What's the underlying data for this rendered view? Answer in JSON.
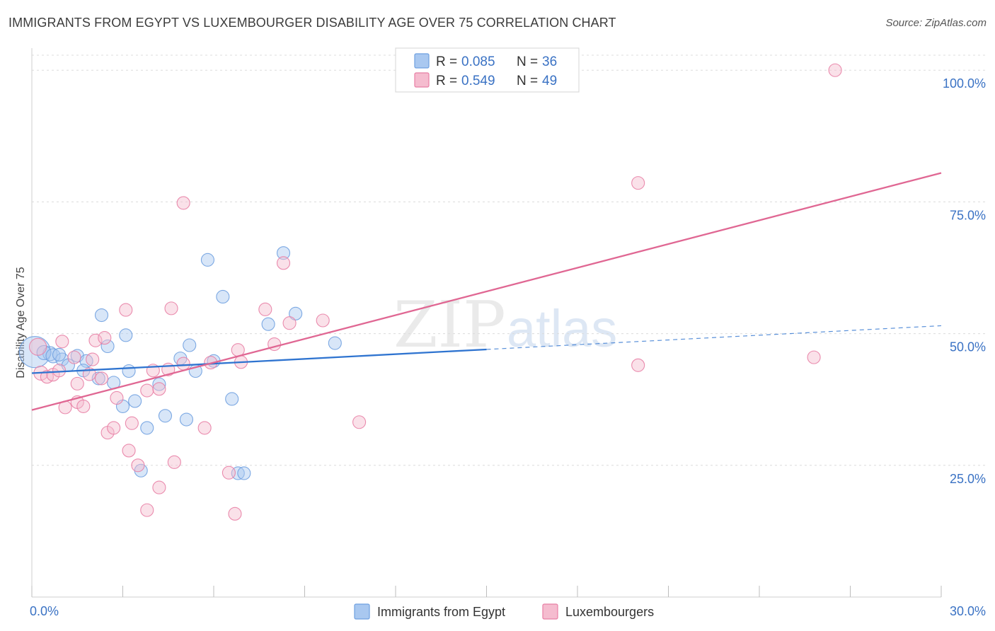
{
  "header": {
    "title": "IMMIGRANTS FROM EGYPT VS LUXEMBOURGER DISABILITY AGE OVER 75 CORRELATION CHART",
    "source": "Source: ZipAtlas.com"
  },
  "watermark": {
    "zip": "ZIP",
    "atlas": "atlas"
  },
  "chart_data": {
    "type": "scatter",
    "ylabel": "Disability Age Over 75",
    "xlim": [
      0,
      30
    ],
    "ylim": [
      0,
      105
    ],
    "x_tick_labels": [
      {
        "value": 0,
        "label": "0.0%"
      },
      {
        "value": 30,
        "label": "30.0%"
      }
    ],
    "y_tick_labels": [
      {
        "value": 25,
        "label": "25.0%"
      },
      {
        "value": 50,
        "label": "50.0%"
      },
      {
        "value": 75,
        "label": "75.0%"
      },
      {
        "value": 100,
        "label": "100.0%"
      }
    ],
    "grid": "horizontal dashed",
    "legend_position": "top-center",
    "stats": [
      {
        "r_label": "R = ",
        "r_value": "0.085",
        "n_label": "N = ",
        "n_value": "36"
      },
      {
        "r_label": "R = ",
        "r_value": "0.549",
        "n_label": "N = ",
        "n_value": "49"
      }
    ],
    "series": [
      {
        "name": "Immigrants from Egypt",
        "color": "#6fa0e0",
        "fill": "#a9c8f0",
        "trend": {
          "x0": 0,
          "y0": 42.5,
          "x1": 15,
          "y1": 47.0,
          "dashed_to_x": 30,
          "dashed_to_y": 51.5
        },
        "points": [
          [
            0.1,
            46.5,
            22
          ],
          [
            0.6,
            46.2,
            10
          ],
          [
            0.4,
            46.4,
            10
          ],
          [
            0.7,
            45.8,
            10
          ],
          [
            1.0,
            45.1,
            9
          ],
          [
            1.5,
            45.8,
            9
          ],
          [
            1.8,
            44.8,
            9
          ],
          [
            1.2,
            44.0,
            9
          ],
          [
            1.7,
            43.0,
            9
          ],
          [
            2.2,
            41.5,
            9
          ],
          [
            2.3,
            53.5,
            9
          ],
          [
            2.5,
            47.6,
            9
          ],
          [
            2.7,
            40.7,
            9
          ],
          [
            3.1,
            49.7,
            9
          ],
          [
            3.2,
            42.9,
            9
          ],
          [
            3.0,
            36.2,
            9
          ],
          [
            3.4,
            37.2,
            9
          ],
          [
            3.8,
            32.1,
            9
          ],
          [
            3.6,
            24.0,
            9
          ],
          [
            4.2,
            40.4,
            9
          ],
          [
            4.4,
            34.4,
            9
          ],
          [
            4.9,
            45.3,
            9
          ],
          [
            5.1,
            33.7,
            9
          ],
          [
            5.2,
            47.8,
            9
          ],
          [
            5.4,
            42.9,
            9
          ],
          [
            5.8,
            64.0,
            9
          ],
          [
            6.0,
            44.8,
            9
          ],
          [
            6.3,
            57.0,
            9
          ],
          [
            6.6,
            37.6,
            9
          ],
          [
            6.8,
            23.5,
            9
          ],
          [
            7.0,
            23.5,
            9
          ],
          [
            7.8,
            51.8,
            9
          ],
          [
            8.3,
            65.3,
            9
          ],
          [
            8.7,
            53.8,
            9
          ],
          [
            10.0,
            48.2,
            9
          ],
          [
            0.9,
            46.0,
            9
          ]
        ]
      },
      {
        "name": "Luxembourgers",
        "color": "#e87fa5",
        "fill": "#f5bccf",
        "trend": {
          "x0": 0,
          "y0": 35.5,
          "x1": 30,
          "y1": 80.5
        },
        "points": [
          [
            0.2,
            47.5,
            12
          ],
          [
            0.3,
            42.5,
            10
          ],
          [
            0.5,
            41.8,
            9
          ],
          [
            0.7,
            42.2,
            9
          ],
          [
            0.9,
            43.0,
            9
          ],
          [
            1.0,
            48.5,
            9
          ],
          [
            1.1,
            36.0,
            9
          ],
          [
            1.4,
            45.5,
            9
          ],
          [
            1.5,
            37.0,
            9
          ],
          [
            1.5,
            40.5,
            9
          ],
          [
            1.7,
            36.2,
            9
          ],
          [
            1.9,
            42.3,
            9
          ],
          [
            2.0,
            45.1,
            9
          ],
          [
            2.1,
            48.7,
            9
          ],
          [
            2.3,
            41.5,
            9
          ],
          [
            2.4,
            49.2,
            9
          ],
          [
            2.5,
            31.2,
            9
          ],
          [
            2.7,
            32.1,
            9
          ],
          [
            2.8,
            37.8,
            9
          ],
          [
            3.1,
            54.5,
            9
          ],
          [
            3.2,
            27.8,
            9
          ],
          [
            3.3,
            33.0,
            9
          ],
          [
            3.5,
            25.0,
            9
          ],
          [
            3.8,
            16.5,
            9
          ],
          [
            3.8,
            39.2,
            9
          ],
          [
            4.0,
            43.0,
            9
          ],
          [
            4.2,
            20.8,
            9
          ],
          [
            4.2,
            39.5,
            9
          ],
          [
            4.5,
            43.2,
            9
          ],
          [
            4.6,
            54.8,
            9
          ],
          [
            4.7,
            25.6,
            9
          ],
          [
            5.0,
            74.8,
            9
          ],
          [
            5.0,
            44.3,
            9
          ],
          [
            5.7,
            32.1,
            9
          ],
          [
            5.9,
            44.5,
            9
          ],
          [
            6.5,
            23.6,
            9
          ],
          [
            6.7,
            15.8,
            9
          ],
          [
            6.8,
            46.9,
            9
          ],
          [
            6.9,
            44.6,
            9
          ],
          [
            7.7,
            54.6,
            9
          ],
          [
            8.0,
            48.0,
            9
          ],
          [
            8.3,
            63.4,
            9
          ],
          [
            8.5,
            52.0,
            9
          ],
          [
            9.6,
            52.5,
            9
          ],
          [
            10.8,
            33.2,
            9
          ],
          [
            20.0,
            78.6,
            9
          ],
          [
            20.0,
            44.0,
            9
          ],
          [
            26.5,
            100.0,
            9
          ],
          [
            25.8,
            45.5,
            9
          ]
        ]
      }
    ]
  }
}
